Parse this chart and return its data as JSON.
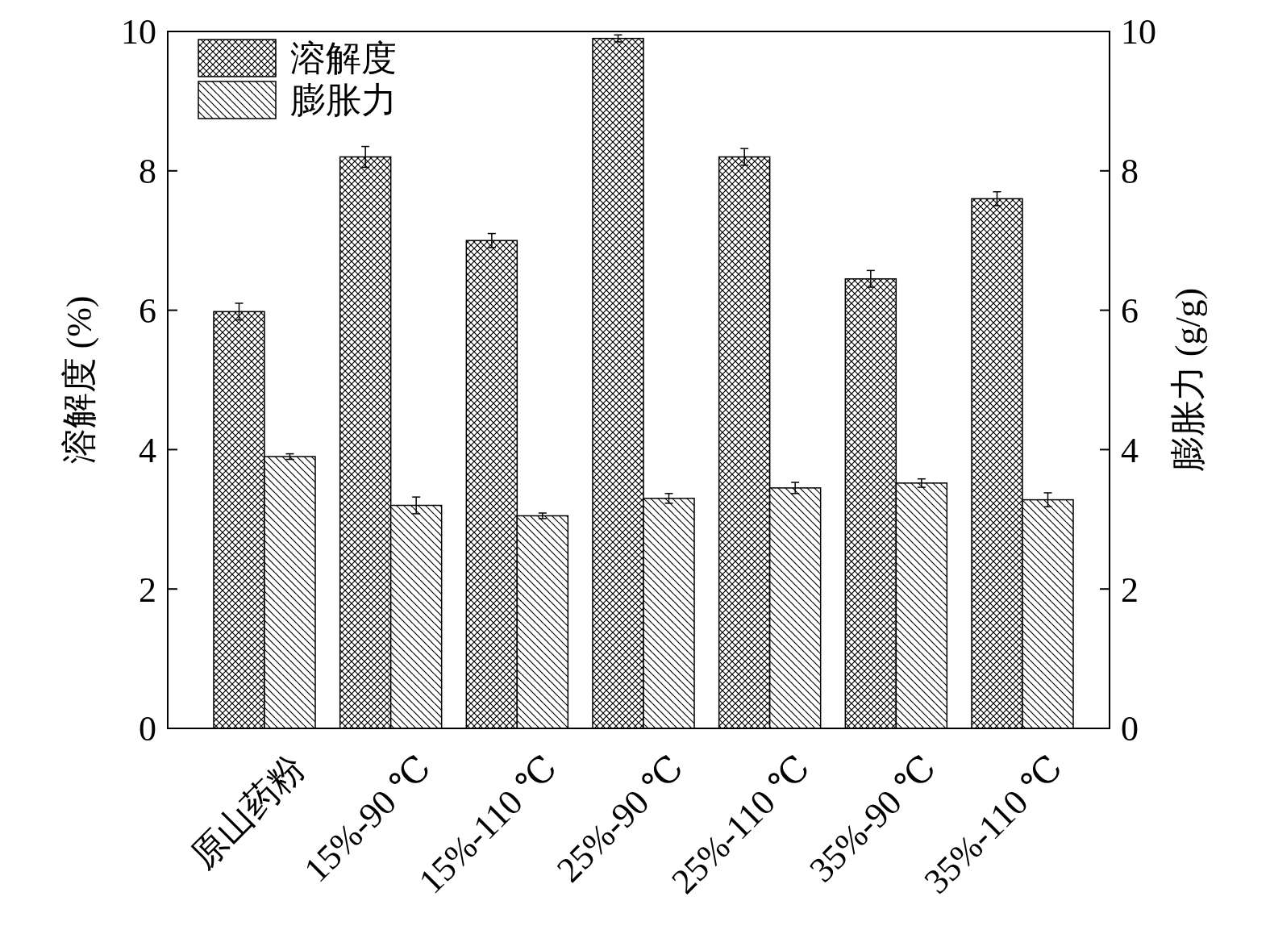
{
  "chart_data": {
    "type": "bar",
    "ylabel": "溶解度 (%)",
    "y2label": "膨胀力 (g/g)",
    "categories": [
      "原山药粉",
      "15%-90 ℃",
      "15%-110 ℃",
      "25%-90 ℃",
      "25%-110 ℃",
      "35%-90 ℃",
      "35%-110 ℃"
    ],
    "series": [
      {
        "name": "溶解度",
        "color": "#000000",
        "values": [
          5.98,
          8.2,
          7.0,
          9.9,
          8.2,
          6.45,
          7.6
        ],
        "errors": [
          0.12,
          0.15,
          0.1,
          0.05,
          0.12,
          0.12,
          0.1
        ]
      },
      {
        "name": "膨胀力",
        "color": "#000000",
        "axis": "y2",
        "values": [
          3.9,
          3.2,
          3.05,
          3.3,
          3.45,
          3.52,
          3.28
        ],
        "errors": [
          0.04,
          0.12,
          0.04,
          0.07,
          0.08,
          0.06,
          0.1
        ]
      }
    ],
    "ylim": [
      0,
      10
    ],
    "yticks": [
      0,
      2,
      4,
      6,
      8,
      10
    ],
    "y2lim": [
      0,
      10
    ],
    "y2ticks": [
      0,
      2,
      4,
      6,
      8,
      10
    ],
    "legend": "top left",
    "grid": false
  }
}
